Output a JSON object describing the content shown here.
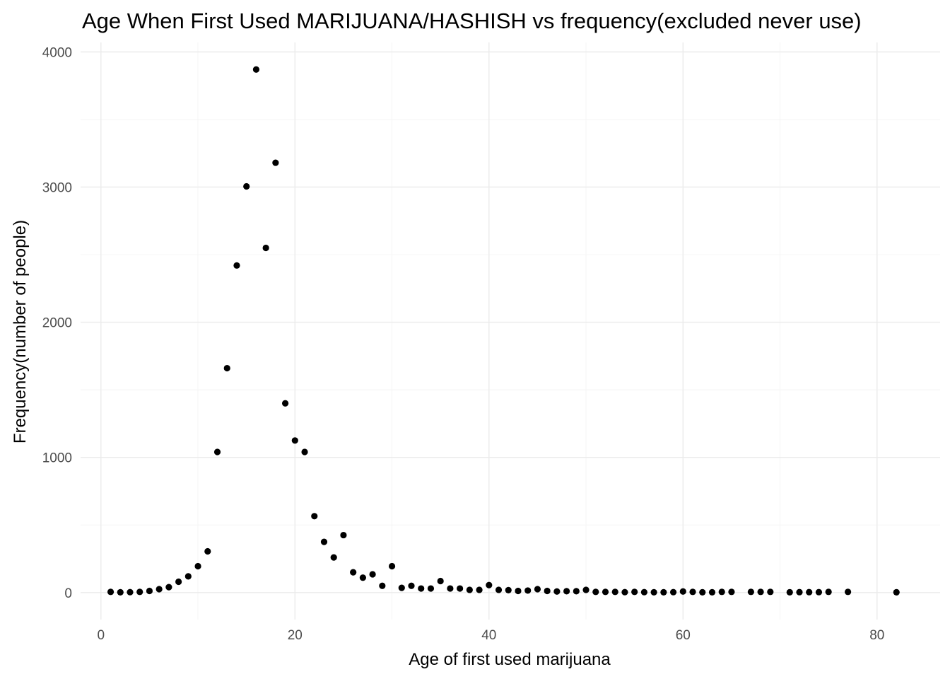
{
  "chart_data": {
    "type": "scatter",
    "title": "Age When First Used MARIJUANA/HASHISH vs frequency(excluded never use)",
    "xlabel": "Age of first used marijuana",
    "ylabel": "Frequency(number of people)",
    "xlim": [
      -2.1,
      86.5
    ],
    "ylim": [
      -200,
      4070
    ],
    "x_ticks": [
      0,
      20,
      40,
      60,
      80
    ],
    "y_ticks": [
      0,
      1000,
      2000,
      3000,
      4000
    ],
    "x_tick_labels": [
      "0",
      "20",
      "40",
      "60",
      "80"
    ],
    "y_tick_labels": [
      "0",
      "1000",
      "2000",
      "3000",
      "4000"
    ],
    "grid": true,
    "legend": "none",
    "point_color": "#000000",
    "points": [
      {
        "x": 1,
        "y": 5
      },
      {
        "x": 2,
        "y": 2
      },
      {
        "x": 3,
        "y": 3
      },
      {
        "x": 4,
        "y": 5
      },
      {
        "x": 5,
        "y": 12
      },
      {
        "x": 6,
        "y": 25
      },
      {
        "x": 7,
        "y": 40
      },
      {
        "x": 8,
        "y": 80
      },
      {
        "x": 9,
        "y": 120
      },
      {
        "x": 10,
        "y": 195
      },
      {
        "x": 11,
        "y": 305
      },
      {
        "x": 12,
        "y": 1040
      },
      {
        "x": 13,
        "y": 1660
      },
      {
        "x": 14,
        "y": 2420
      },
      {
        "x": 15,
        "y": 3005
      },
      {
        "x": 16,
        "y": 3870
      },
      {
        "x": 17,
        "y": 2550
      },
      {
        "x": 18,
        "y": 3180
      },
      {
        "x": 19,
        "y": 1400
      },
      {
        "x": 20,
        "y": 1125
      },
      {
        "x": 21,
        "y": 1040
      },
      {
        "x": 22,
        "y": 565
      },
      {
        "x": 23,
        "y": 375
      },
      {
        "x": 24,
        "y": 260
      },
      {
        "x": 25,
        "y": 425
      },
      {
        "x": 26,
        "y": 150
      },
      {
        "x": 27,
        "y": 110
      },
      {
        "x": 28,
        "y": 135
      },
      {
        "x": 29,
        "y": 50
      },
      {
        "x": 30,
        "y": 195
      },
      {
        "x": 31,
        "y": 35
      },
      {
        "x": 32,
        "y": 50
      },
      {
        "x": 33,
        "y": 30
      },
      {
        "x": 34,
        "y": 30
      },
      {
        "x": 35,
        "y": 85
      },
      {
        "x": 36,
        "y": 30
      },
      {
        "x": 37,
        "y": 30
      },
      {
        "x": 38,
        "y": 20
      },
      {
        "x": 39,
        "y": 20
      },
      {
        "x": 40,
        "y": 55
      },
      {
        "x": 41,
        "y": 20
      },
      {
        "x": 42,
        "y": 18
      },
      {
        "x": 43,
        "y": 12
      },
      {
        "x": 44,
        "y": 15
      },
      {
        "x": 45,
        "y": 25
      },
      {
        "x": 46,
        "y": 12
      },
      {
        "x": 47,
        "y": 8
      },
      {
        "x": 48,
        "y": 10
      },
      {
        "x": 49,
        "y": 10
      },
      {
        "x": 50,
        "y": 20
      },
      {
        "x": 51,
        "y": 5
      },
      {
        "x": 52,
        "y": 5
      },
      {
        "x": 53,
        "y": 5
      },
      {
        "x": 54,
        "y": 3
      },
      {
        "x": 55,
        "y": 5
      },
      {
        "x": 56,
        "y": 3
      },
      {
        "x": 57,
        "y": 2
      },
      {
        "x": 58,
        "y": 2
      },
      {
        "x": 59,
        "y": 3
      },
      {
        "x": 60,
        "y": 8
      },
      {
        "x": 61,
        "y": 5
      },
      {
        "x": 62,
        "y": 2
      },
      {
        "x": 63,
        "y": 2
      },
      {
        "x": 64,
        "y": 5
      },
      {
        "x": 65,
        "y": 5
      },
      {
        "x": 67,
        "y": 5
      },
      {
        "x": 68,
        "y": 5
      },
      {
        "x": 69,
        "y": 5
      },
      {
        "x": 71,
        "y": 2
      },
      {
        "x": 72,
        "y": 3
      },
      {
        "x": 73,
        "y": 3
      },
      {
        "x": 74,
        "y": 3
      },
      {
        "x": 75,
        "y": 5
      },
      {
        "x": 77,
        "y": 5
      },
      {
        "x": 82,
        "y": 2
      }
    ]
  }
}
